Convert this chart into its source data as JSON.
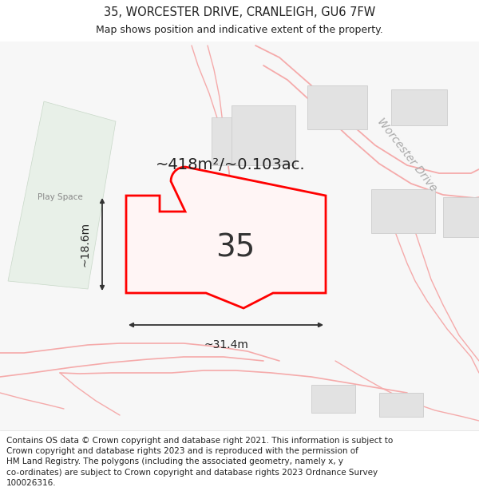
{
  "title": "35, WORCESTER DRIVE, CRANLEIGH, GU6 7FW",
  "subtitle": "Map shows position and indicative extent of the property.",
  "area_label": "~418m²/~0.103ac.",
  "width_label": "~31.4m",
  "height_label": "~18.6m",
  "number_label": "35",
  "footer_line1": "Contains OS data © Crown copyright and database right 2021. This information is subject to",
  "footer_line2": "Crown copyright and database rights 2023 and is reproduced with the permission of",
  "footer_line3": "HM Land Registry. The polygons (including the associated geometry, namely x, y",
  "footer_line4": "co-ordinates) are subject to Crown copyright and database rights 2023 Ordnance Survey",
  "footer_line5": "100026316.",
  "bg_color": "#ffffff",
  "highlight_color": "#ff0000",
  "road_color": "#f5aaaa",
  "building_fill": "#e2e2e2",
  "building_edge": "#cccccc",
  "green_color": "#e8f0e8",
  "green_edge": "#c8d8c8",
  "road_label": "Worcester Drive",
  "play_space_label": "Play Space",
  "title_fontsize": 10.5,
  "subtitle_fontsize": 9,
  "footer_fontsize": 7.5,
  "area_fontsize": 14,
  "number_fontsize": 28,
  "dim_fontsize": 10,
  "road_label_fontsize": 10
}
